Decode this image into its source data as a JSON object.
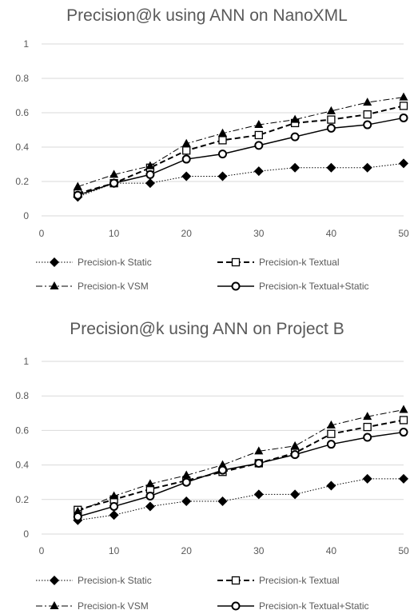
{
  "chart_data": [
    {
      "type": "line",
      "title": "Precision@k using ANN on NanoXML",
      "xlabel": "",
      "ylabel": "",
      "x": [
        5,
        10,
        15,
        20,
        25,
        30,
        35,
        40,
        45,
        50
      ],
      "xlim": [
        0,
        50
      ],
      "ylim": [
        0,
        1
      ],
      "xticks": [
        "0",
        "10",
        "20",
        "30",
        "40",
        "50"
      ],
      "yticks": [
        "0",
        "0.2",
        "0.4",
        "0.6",
        "0.8",
        "1"
      ],
      "grid": true,
      "legend_position": "bottom",
      "series": [
        {
          "name": "Precision-k Static",
          "marker": "diamond",
          "dash": "dotted",
          "values": [
            0.11,
            0.19,
            0.19,
            0.23,
            0.23,
            0.26,
            0.28,
            0.28,
            0.28,
            0.305
          ]
        },
        {
          "name": "Precision-k Textual",
          "marker": "square-open",
          "dash": "dashed",
          "values": [
            0.13,
            0.19,
            0.28,
            0.38,
            0.44,
            0.47,
            0.54,
            0.56,
            0.59,
            0.64
          ]
        },
        {
          "name": "Precision-k VSM",
          "marker": "triangle",
          "dash": "dash-dot",
          "values": [
            0.17,
            0.24,
            0.29,
            0.42,
            0.48,
            0.53,
            0.56,
            0.61,
            0.66,
            0.69
          ]
        },
        {
          "name": "Precision-k Textual+Static",
          "marker": "circle-open",
          "dash": "solid",
          "values": [
            0.12,
            0.19,
            0.24,
            0.33,
            0.36,
            0.41,
            0.46,
            0.51,
            0.53,
            0.57
          ]
        }
      ]
    },
    {
      "type": "line",
      "title": "Precision@k using ANN on Project B",
      "xlabel": "",
      "ylabel": "",
      "x": [
        5,
        10,
        15,
        20,
        25,
        30,
        35,
        40,
        45,
        50
      ],
      "xlim": [
        0,
        50
      ],
      "ylim": [
        0,
        1
      ],
      "xticks": [
        "0",
        "10",
        "20",
        "30",
        "40",
        "50"
      ],
      "yticks": [
        "0",
        "0.2",
        "0.4",
        "0.6",
        "0.8",
        "1"
      ],
      "grid": true,
      "legend_position": "bottom",
      "series": [
        {
          "name": "Precision-k Static",
          "marker": "diamond",
          "dash": "dotted",
          "values": [
            0.08,
            0.11,
            0.16,
            0.19,
            0.19,
            0.23,
            0.23,
            0.28,
            0.32,
            0.32
          ]
        },
        {
          "name": "Precision-k Textual",
          "marker": "square-open",
          "dash": "dashed",
          "values": [
            0.14,
            0.2,
            0.26,
            0.31,
            0.36,
            0.41,
            0.47,
            0.58,
            0.62,
            0.66
          ]
        },
        {
          "name": "Precision-k VSM",
          "marker": "triangle",
          "dash": "dash-dot",
          "values": [
            0.13,
            0.22,
            0.29,
            0.34,
            0.4,
            0.48,
            0.51,
            0.63,
            0.68,
            0.72
          ]
        },
        {
          "name": "Precision-k Textual+Static",
          "marker": "circle-open",
          "dash": "solid",
          "values": [
            0.1,
            0.16,
            0.22,
            0.3,
            0.37,
            0.41,
            0.46,
            0.52,
            0.56,
            0.59
          ]
        }
      ]
    }
  ]
}
